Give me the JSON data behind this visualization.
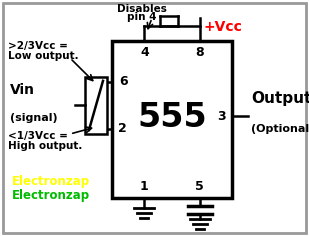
{
  "background_color": "#ffffff",
  "ic_label": "555",
  "ic_label_fontsize": 24,
  "vcc_label": "+Vcc",
  "vcc_color": "#ff0000",
  "disables_text1": "Disables",
  "disables_text2": "pin 4",
  "vin_label": "Vin",
  "vin_sublabel": "(signal)",
  "upper_threshold1": ">2/3Vcc =",
  "upper_threshold2": "Low output.",
  "lower_threshold1": "<1/3Vcc =",
  "lower_threshold2": "High output.",
  "output_label": "Output",
  "output_sublabel": "(Optional)",
  "electronzap_yellow": "Electronzap",
  "electronzap_green": "Electronzap",
  "border_color": "#999999"
}
